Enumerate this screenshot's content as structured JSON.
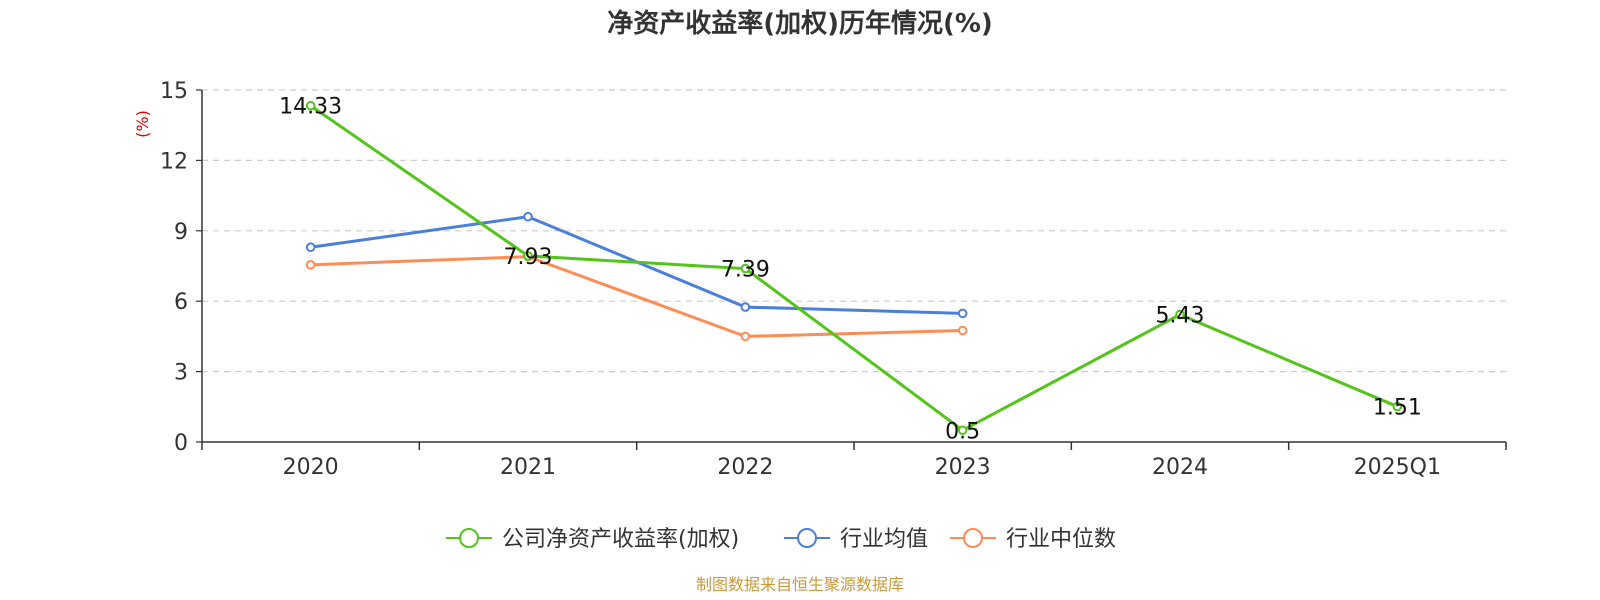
{
  "chart_data": {
    "type": "line",
    "title": "净资产收益率(加权)历年情况(%)",
    "ylabel": "(%)",
    "categories": [
      "2020",
      "2021",
      "2022",
      "2023",
      "2024",
      "2025Q1"
    ],
    "y_ticks": [
      "0",
      "3",
      "6",
      "9",
      "12",
      "15"
    ],
    "ylim": [
      0,
      15
    ],
    "grid": true,
    "legend_position": "bottom",
    "series": [
      {
        "name": "公司净资产收益率(加权)",
        "color": "#52c41a",
        "values": [
          14.33,
          7.93,
          7.39,
          0.5,
          5.43,
          1.51
        ],
        "labels": [
          "14.33",
          "7.93",
          "7.39",
          "0.5",
          "5.43",
          "1.51"
        ]
      },
      {
        "name": "行业均值",
        "color": "#4a7fdb",
        "values": [
          8.3,
          9.6,
          5.75,
          5.48,
          null,
          null
        ]
      },
      {
        "name": "行业中位数",
        "color": "#ff8c55",
        "values": [
          7.55,
          7.9,
          4.5,
          4.75,
          null,
          null
        ]
      }
    ]
  },
  "source": "制图数据来自恒生聚源数据库"
}
